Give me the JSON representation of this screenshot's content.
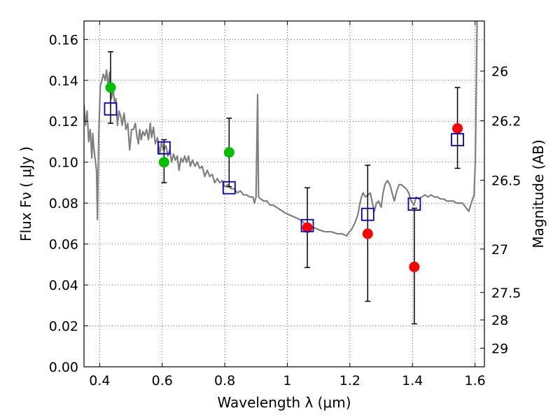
{
  "chart_data": {
    "type": "scatter",
    "xlabel": "Wavelength  λ (μm)",
    "ylabel": "Flux  Fν  ( μJy )",
    "ylabel_right": "Magnitude (AB)",
    "xlim": [
      0.35,
      1.63
    ],
    "ylim": [
      0.0,
      0.169
    ],
    "grid": true,
    "x_ticks": [
      {
        "value": 0.4,
        "label": "0.4"
      },
      {
        "value": 0.6,
        "label": "0.6"
      },
      {
        "value": 0.8,
        "label": "0.8"
      },
      {
        "value": 1.0,
        "label": "1"
      },
      {
        "value": 1.2,
        "label": "1.2"
      },
      {
        "value": 1.4,
        "label": "1.4"
      },
      {
        "value": 1.6,
        "label": "1.6"
      }
    ],
    "y_ticks": [
      {
        "value": 0.0,
        "label": "0.00"
      },
      {
        "value": 0.02,
        "label": "0.02"
      },
      {
        "value": 0.04,
        "label": "0.04"
      },
      {
        "value": 0.06,
        "label": "0.06"
      },
      {
        "value": 0.08,
        "label": "0.08"
      },
      {
        "value": 0.1,
        "label": "0.10"
      },
      {
        "value": 0.12,
        "label": "0.12"
      },
      {
        "value": 0.14,
        "label": "0.14"
      },
      {
        "value": 0.16,
        "label": "0.16"
      }
    ],
    "right_ticks": [
      {
        "mag": 26,
        "label": "26"
      },
      {
        "mag": 26.2,
        "label": "26.2"
      },
      {
        "mag": 26.5,
        "label": "26.5"
      },
      {
        "mag": 27,
        "label": "27"
      },
      {
        "mag": 27.5,
        "label": "27.5"
      },
      {
        "mag": 28,
        "label": "28"
      },
      {
        "mag": 29,
        "label": "29"
      }
    ],
    "series": [
      {
        "kind": "points",
        "color": "#00c000",
        "marker": "circle",
        "points": [
          {
            "x": 0.435,
            "y": 0.1365
          },
          {
            "x": 0.606,
            "y": 0.1
          },
          {
            "x": 0.814,
            "y": 0.1048
          }
        ]
      },
      {
        "kind": "points",
        "color": "#ff0000",
        "marker": "circle",
        "points": [
          {
            "x": 1.064,
            "y": 0.068
          },
          {
            "x": 1.257,
            "y": 0.065
          },
          {
            "x": 1.406,
            "y": 0.0488
          },
          {
            "x": 1.544,
            "y": 0.1165
          }
        ]
      },
      {
        "kind": "points",
        "color": "#0000cc",
        "marker": "square",
        "points": [
          {
            "x": 0.435,
            "y": 0.126
          },
          {
            "x": 0.606,
            "y": 0.107
          },
          {
            "x": 0.814,
            "y": 0.0875
          },
          {
            "x": 1.064,
            "y": 0.069
          },
          {
            "x": 1.257,
            "y": 0.0745
          },
          {
            "x": 1.406,
            "y": 0.0795
          },
          {
            "x": 1.544,
            "y": 0.111
          }
        ]
      },
      {
        "kind": "errorbars",
        "color": "#000000",
        "bars": [
          {
            "x": 0.435,
            "low": 0.119,
            "high": 0.154
          },
          {
            "x": 0.606,
            "low": 0.09,
            "high": 0.111
          },
          {
            "x": 0.814,
            "low": 0.088,
            "high": 0.1215
          },
          {
            "x": 1.064,
            "low": 0.0485,
            "high": 0.0875
          },
          {
            "x": 1.257,
            "low": 0.032,
            "high": 0.0985
          },
          {
            "x": 1.406,
            "low": 0.021,
            "high": 0.0775
          },
          {
            "x": 1.544,
            "low": 0.097,
            "high": 0.1365
          }
        ]
      },
      {
        "kind": "line",
        "color": "#808080",
        "points": [
          [
            0.35,
            0.128
          ],
          [
            0.355,
            0.118
          ],
          [
            0.36,
            0.125
          ],
          [
            0.365,
            0.11
          ],
          [
            0.37,
            0.116
          ],
          [
            0.375,
            0.102
          ],
          [
            0.378,
            0.114
          ],
          [
            0.382,
            0.106
          ],
          [
            0.386,
            0.101
          ],
          [
            0.39,
            0.096
          ],
          [
            0.393,
            0.072
          ],
          [
            0.397,
            0.112
          ],
          [
            0.402,
            0.137
          ],
          [
            0.407,
            0.14
          ],
          [
            0.412,
            0.143
          ],
          [
            0.418,
            0.14
          ],
          [
            0.422,
            0.145
          ],
          [
            0.428,
            0.137
          ],
          [
            0.432,
            0.144
          ],
          [
            0.438,
            0.131
          ],
          [
            0.443,
            0.136
          ],
          [
            0.448,
            0.129
          ],
          [
            0.452,
            0.131
          ],
          [
            0.457,
            0.118
          ],
          [
            0.462,
            0.125
          ],
          [
            0.468,
            0.122
          ],
          [
            0.472,
            0.118
          ],
          [
            0.478,
            0.124
          ],
          [
            0.484,
            0.116
          ],
          [
            0.49,
            0.119
          ],
          [
            0.496,
            0.106
          ],
          [
            0.502,
            0.116
          ],
          [
            0.508,
            0.116
          ],
          [
            0.514,
            0.119
          ],
          [
            0.519,
            0.113
          ],
          [
            0.524,
            0.109
          ],
          [
            0.528,
            0.116
          ],
          [
            0.533,
            0.111
          ],
          [
            0.538,
            0.115
          ],
          [
            0.544,
            0.113
          ],
          [
            0.55,
            0.116
          ],
          [
            0.556,
            0.111
          ],
          [
            0.562,
            0.119
          ],
          [
            0.566,
            0.112
          ],
          [
            0.572,
            0.117
          ],
          [
            0.578,
            0.109
          ],
          [
            0.585,
            0.112
          ],
          [
            0.592,
            0.104
          ],
          [
            0.598,
            0.11
          ],
          [
            0.604,
            0.106
          ],
          [
            0.612,
            0.108
          ],
          [
            0.618,
            0.103
          ],
          [
            0.624,
            0.106
          ],
          [
            0.63,
            0.1
          ],
          [
            0.636,
            0.104
          ],
          [
            0.642,
            0.101
          ],
          [
            0.648,
            0.103
          ],
          [
            0.654,
            0.096
          ],
          [
            0.66,
            0.102
          ],
          [
            0.666,
            0.1
          ],
          [
            0.672,
            0.103
          ],
          [
            0.678,
            0.1
          ],
          [
            0.684,
            0.103
          ],
          [
            0.69,
            0.098
          ],
          [
            0.697,
            0.101
          ],
          [
            0.705,
            0.098
          ],
          [
            0.712,
            0.1
          ],
          [
            0.72,
            0.097
          ],
          [
            0.728,
            0.098
          ],
          [
            0.736,
            0.093
          ],
          [
            0.744,
            0.096
          ],
          [
            0.752,
            0.093
          ],
          [
            0.76,
            0.094
          ],
          [
            0.768,
            0.09
          ],
          [
            0.776,
            0.092
          ],
          [
            0.784,
            0.09
          ],
          [
            0.792,
            0.091
          ],
          [
            0.8,
            0.088
          ],
          [
            0.81,
            0.089
          ],
          [
            0.82,
            0.087
          ],
          [
            0.83,
            0.087
          ],
          [
            0.84,
            0.085
          ],
          [
            0.85,
            0.086
          ],
          [
            0.86,
            0.084
          ],
          [
            0.87,
            0.084
          ],
          [
            0.88,
            0.083
          ],
          [
            0.89,
            0.083
          ],
          [
            0.895,
            0.08
          ],
          [
            0.9,
            0.083
          ],
          [
            0.905,
            0.133
          ],
          [
            0.908,
            0.083
          ],
          [
            0.915,
            0.082
          ],
          [
            0.925,
            0.081
          ],
          [
            0.935,
            0.081
          ],
          [
            0.945,
            0.079
          ],
          [
            0.955,
            0.079
          ],
          [
            0.965,
            0.078
          ],
          [
            0.975,
            0.077
          ],
          [
            0.985,
            0.076
          ],
          [
            0.995,
            0.075
          ],
          [
            1.01,
            0.074
          ],
          [
            1.025,
            0.073
          ],
          [
            1.04,
            0.072
          ],
          [
            1.055,
            0.07
          ],
          [
            1.07,
            0.069
          ],
          [
            1.085,
            0.068
          ],
          [
            1.1,
            0.067
          ],
          [
            1.12,
            0.066
          ],
          [
            1.14,
            0.066
          ],
          [
            1.16,
            0.065
          ],
          [
            1.175,
            0.065
          ],
          [
            1.19,
            0.064
          ],
          [
            1.198,
            0.066
          ],
          [
            1.205,
            0.067
          ],
          [
            1.215,
            0.07
          ],
          [
            1.225,
            0.074
          ],
          [
            1.235,
            0.082
          ],
          [
            1.242,
            0.085
          ],
          [
            1.25,
            0.083
          ],
          [
            1.258,
            0.084
          ],
          [
            1.265,
            0.085
          ],
          [
            1.272,
            0.08
          ],
          [
            1.278,
            0.076
          ],
          [
            1.285,
            0.08
          ],
          [
            1.292,
            0.081
          ],
          [
            1.3,
            0.078
          ],
          [
            1.306,
            0.085
          ],
          [
            1.312,
            0.089
          ],
          [
            1.32,
            0.091
          ],
          [
            1.328,
            0.089
          ],
          [
            1.335,
            0.085
          ],
          [
            1.342,
            0.081
          ],
          [
            1.35,
            0.086
          ],
          [
            1.357,
            0.089
          ],
          [
            1.365,
            0.089
          ],
          [
            1.372,
            0.088
          ],
          [
            1.38,
            0.087
          ],
          [
            1.388,
            0.085
          ],
          [
            1.396,
            0.081
          ],
          [
            1.405,
            0.079
          ],
          [
            1.412,
            0.083
          ],
          [
            1.42,
            0.082
          ],
          [
            1.43,
            0.083
          ],
          [
            1.44,
            0.084
          ],
          [
            1.45,
            0.083
          ],
          [
            1.46,
            0.084
          ],
          [
            1.47,
            0.083
          ],
          [
            1.48,
            0.083
          ],
          [
            1.49,
            0.082
          ],
          [
            1.5,
            0.082
          ],
          [
            1.51,
            0.081
          ],
          [
            1.52,
            0.081
          ],
          [
            1.53,
            0.081
          ],
          [
            1.54,
            0.08
          ],
          [
            1.55,
            0.08
          ],
          [
            1.56,
            0.08
          ],
          [
            1.57,
            0.078
          ],
          [
            1.58,
            0.076
          ],
          [
            1.59,
            0.081
          ],
          [
            1.597,
            0.084
          ],
          [
            1.601,
            0.1
          ],
          [
            1.604,
            0.135
          ],
          [
            1.607,
            0.175
          ]
        ]
      }
    ]
  }
}
